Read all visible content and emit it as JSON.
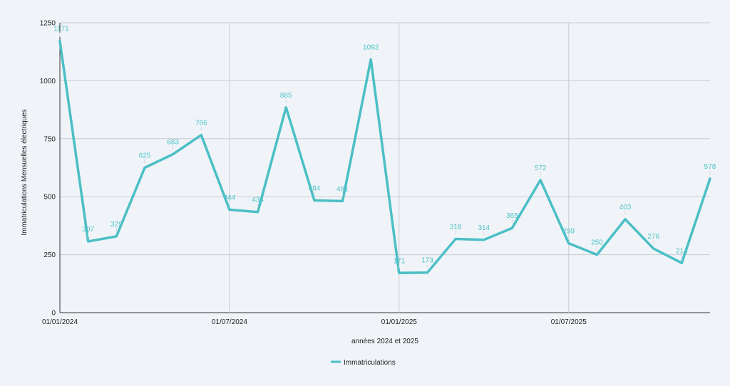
{
  "chart_data": {
    "type": "line",
    "title": "",
    "xlabel": "années 2024 et 2025",
    "ylabel": "Immatriculations Mensuelles électriques",
    "ylim": [
      0,
      1250
    ],
    "yticks": [
      0,
      250,
      500,
      750,
      1000,
      1250
    ],
    "x_tick_labels": [
      {
        "index": 0,
        "label": "01/01/2024"
      },
      {
        "index": 6,
        "label": "01/07/2024"
      },
      {
        "index": 12,
        "label": "01/01/2025"
      },
      {
        "index": 18,
        "label": "01/07/2025"
      }
    ],
    "grid": true,
    "legend_position": "bottom",
    "series": [
      {
        "name": "Immatriculations",
        "color": "#4bbfc6",
        "values": [
          1171,
          307,
          329,
          625,
          683,
          766,
          444,
          434,
          885,
          484,
          481,
          1092,
          171,
          173,
          318,
          314,
          365,
          572,
          299,
          250,
          403,
          276,
          214,
          578
        ]
      }
    ]
  }
}
